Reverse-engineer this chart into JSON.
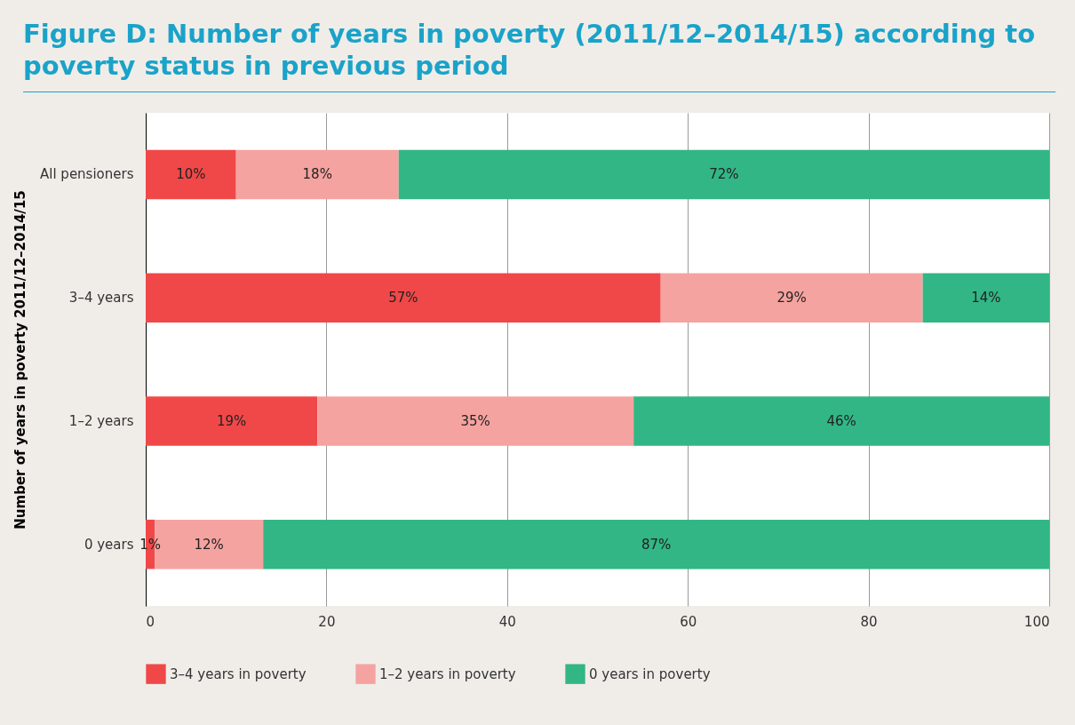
{
  "chart_data": {
    "type": "bar",
    "orientation": "horizontal",
    "stacked": true,
    "title": "Figure D: Number of years in poverty (2011/12–2014/15) according to poverty status in previous period",
    "ylabel": "Number of years in poverty 2011/12–2014/15",
    "categories": [
      "All pensioners",
      "3–4 years",
      "1–2 years",
      "0 years"
    ],
    "series": [
      {
        "name": "3–4 years in poverty",
        "color": "#f04848",
        "values": [
          10,
          57,
          19,
          1
        ],
        "value_labels": [
          "10%",
          "57%",
          "19%",
          "1%"
        ]
      },
      {
        "name": "1–2 years in poverty",
        "color": "#f5a3a0",
        "values": [
          18,
          29,
          35,
          12
        ],
        "value_labels": [
          "18%",
          "29%",
          "35%",
          "12%"
        ]
      },
      {
        "name": "0 years in poverty",
        "color": "#32b685",
        "values": [
          72,
          14,
          46,
          87
        ],
        "value_labels": [
          "72%",
          "14%",
          "46%",
          "87%"
        ]
      }
    ],
    "xlim": [
      0,
      100
    ],
    "xticks": [
      0,
      20,
      40,
      60,
      80,
      100
    ],
    "grid": "x",
    "legend": "bottom left"
  }
}
